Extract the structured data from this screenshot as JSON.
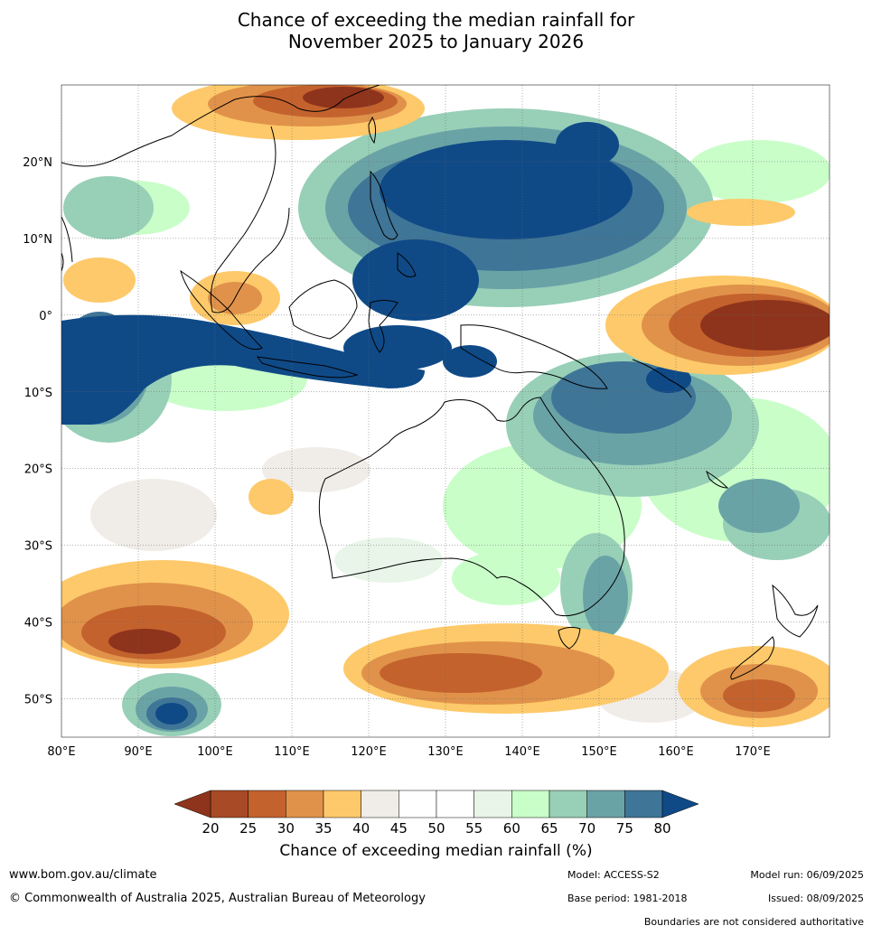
{
  "title": {
    "line1": "Chance of exceeding the median rainfall for",
    "line2": "November 2025 to January 2026"
  },
  "map": {
    "lon_range": [
      80,
      180
    ],
    "lat_range": [
      -55,
      30
    ],
    "lon_ticks": [
      "80°E",
      "90°E",
      "100°E",
      "110°E",
      "120°E",
      "130°E",
      "140°E",
      "150°E",
      "160°E",
      "170°E"
    ],
    "lat_ticks": [
      "20°N",
      "10°N",
      "0°",
      "10°S",
      "20°S",
      "30°S",
      "40°S",
      "50°S"
    ]
  },
  "colorbar": {
    "title": "Chance of exceeding median rainfall (%)",
    "ticks": [
      "20",
      "25",
      "30",
      "35",
      "40",
      "45",
      "50",
      "55",
      "60",
      "65",
      "70",
      "75",
      "80"
    ],
    "colors": [
      "#a84a25",
      "#c4622d",
      "#e0924a",
      "#fdc96a",
      "#f0ece8",
      "#ffffff",
      "#ffffff",
      "#e8f5e8",
      "#c9fec9",
      "#98cfb7",
      "#6aa3a6",
      "#3f7597"
    ],
    "under_color": "#8e341c",
    "over_color": "#0f4a87"
  },
  "footer": {
    "website": "www.bom.gov.au/climate",
    "copyright": "© Commonwealth of Australia 2025, Australian Bureau of Meteorology",
    "model": "Model: ACCESS-S2",
    "base_period": "Base period: 1981-2018",
    "model_run": "Model run: 06/09/2025",
    "issued": "Issued: 08/09/2025",
    "disclaimer": "Boundaries are not considered authoritative"
  }
}
